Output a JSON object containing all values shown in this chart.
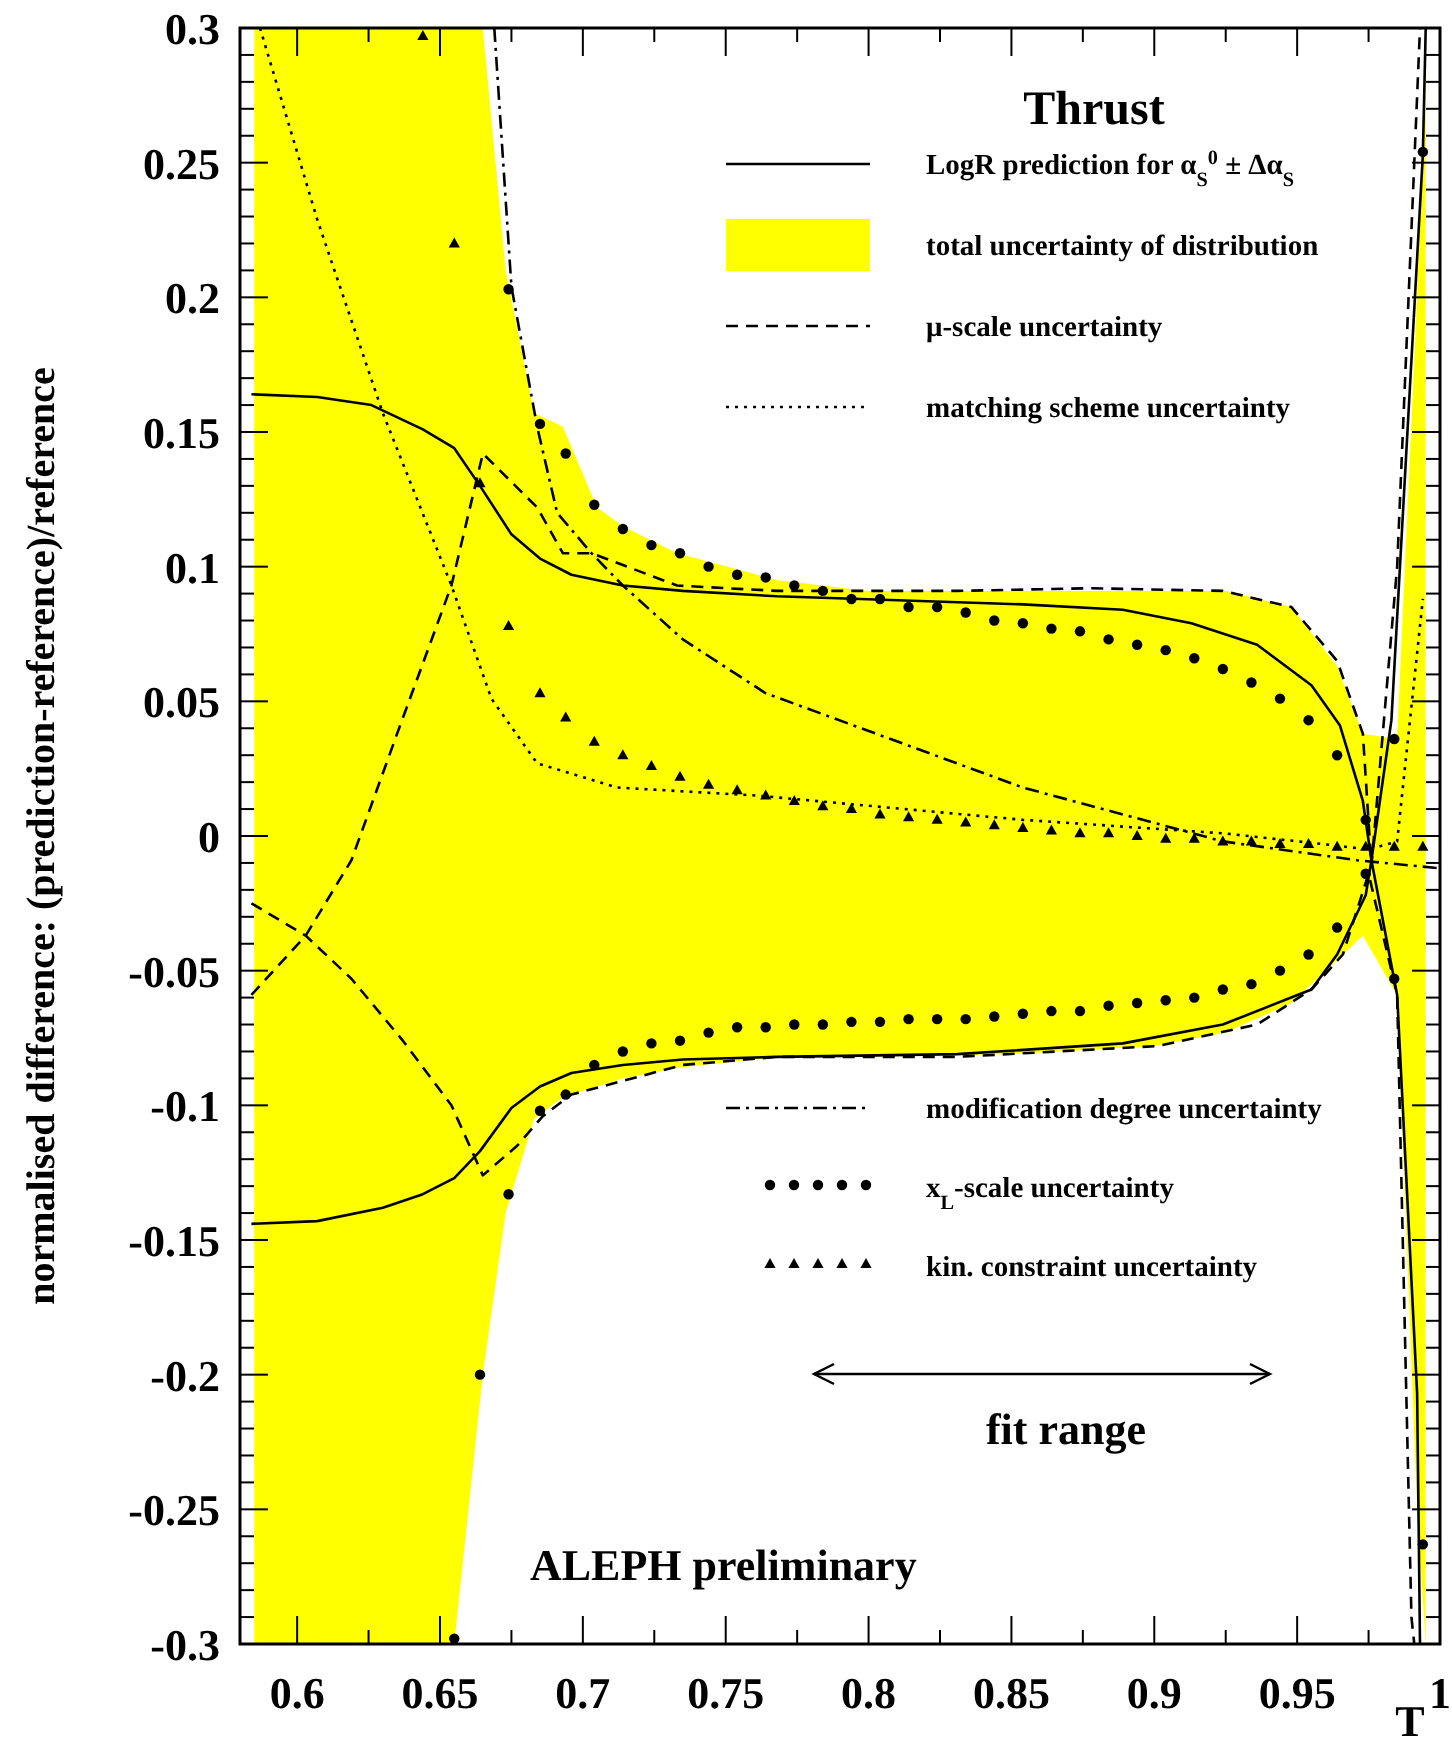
{
  "chart_data": {
    "type": "line",
    "title": "Thrust",
    "xlabel": "T",
    "ylabel": "normalised difference: (prediction-reference)/reference",
    "xlim": [
      0.58,
      1.0
    ],
    "xticks": [
      0.6,
      {
        "value": 0.625,
        "label": null
      },
      0.65,
      {
        "value": 0.675,
        "label": null
      },
      0.7,
      {
        "value": 0.725,
        "label": null
      },
      0.75,
      {
        "value": 0.775,
        "label": null
      },
      0.8,
      {
        "value": 0.825,
        "label": null
      },
      0.85,
      {
        "value": 0.875,
        "label": null
      },
      0.9,
      {
        "value": 0.925,
        "label": null
      },
      0.95,
      {
        "value": 0.975,
        "label": null
      },
      1
    ],
    "ylim": [
      -0.3,
      0.3
    ],
    "yticks": [
      -0.3,
      {
        "value": -0.29,
        "label": null
      },
      {
        "value": -0.28,
        "label": null
      },
      {
        "value": -0.27,
        "label": null
      },
      {
        "value": -0.26,
        "label": null
      },
      -0.25,
      {
        "value": -0.24,
        "label": null
      },
      {
        "value": -0.23,
        "label": null
      },
      {
        "value": -0.22,
        "label": null
      },
      {
        "value": -0.21,
        "label": null
      },
      -0.2,
      {
        "value": -0.19,
        "label": null
      },
      {
        "value": -0.18,
        "label": null
      },
      {
        "value": -0.17,
        "label": null
      },
      {
        "value": -0.16,
        "label": null
      },
      -0.15,
      {
        "value": -0.14,
        "label": null
      },
      {
        "value": -0.13,
        "label": null
      },
      {
        "value": -0.12,
        "label": null
      },
      {
        "value": -0.11,
        "label": null
      },
      -0.1,
      {
        "value": -0.09,
        "label": null
      },
      {
        "value": -0.08,
        "label": null
      },
      {
        "value": -0.07,
        "label": null
      },
      {
        "value": -0.06,
        "label": null
      },
      -0.05,
      {
        "value": -0.04,
        "label": null
      },
      {
        "value": -0.03,
        "label": null
      },
      {
        "value": -0.02,
        "label": null
      },
      {
        "value": -0.01,
        "label": null
      },
      0,
      {
        "value": 0.01,
        "label": null
      },
      {
        "value": 0.02,
        "label": null
      },
      {
        "value": 0.03,
        "label": null
      },
      {
        "value": 0.04,
        "label": null
      },
      0.05,
      {
        "value": 0.06,
        "label": null
      },
      {
        "value": 0.07,
        "label": null
      },
      {
        "value": 0.08,
        "label": null
      },
      {
        "value": 0.09,
        "label": null
      },
      0.1,
      {
        "value": 0.11,
        "label": null
      },
      {
        "value": 0.12,
        "label": null
      },
      {
        "value": 0.13,
        "label": null
      },
      {
        "value": 0.14,
        "label": null
      },
      0.15,
      {
        "value": 0.16,
        "label": null
      },
      {
        "value": 0.17,
        "label": null
      },
      {
        "value": 0.18,
        "label": null
      },
      {
        "value": 0.19,
        "label": null
      },
      0.2,
      {
        "value": 0.21,
        "label": null
      },
      {
        "value": 0.22,
        "label": null
      },
      {
        "value": 0.23,
        "label": null
      },
      {
        "value": 0.24,
        "label": null
      },
      0.25,
      {
        "value": 0.26,
        "label": null
      },
      {
        "value": 0.27,
        "label": null
      },
      {
        "value": 0.28,
        "label": null
      },
      {
        "value": 0.29,
        "label": null
      },
      0.3
    ],
    "grid": false,
    "legend": "right",
    "annotations": [
      "fit range",
      "ALEPH preliminary"
    ],
    "series": [
      {
        "name": "LogR prediction for α$_{S}$$^{0}$ ± Δα$_{S}$",
        "color": "#000000",
        "line_style": "solid",
        "x": [
          0.584,
          0.607,
          0.626,
          0.644,
          0.655,
          0.664,
          0.675,
          0.685,
          0.696,
          0.714,
          0.735,
          0.768,
          0.854,
          0.889,
          0.913,
          0.936,
          0.955,
          0.965,
          0.973,
          0.976,
          0.983,
          0.994,
          0.995
        ],
        "values": [
          0.164,
          0.163,
          0.16,
          0.151,
          0.144,
          0.13,
          0.112,
          0.103,
          0.097,
          0.093,
          0.091,
          0.089,
          0.086,
          0.084,
          0.079,
          0.071,
          0.056,
          0.041,
          0.013,
          -0.009,
          0.043,
          0.253,
          0.3
        ]
      },
      {
        "name": "total uncertainty of distribution",
        "type": "area",
        "color": "#ffff00",
        "x": [
          0.585,
          0.62,
          0.655,
          0.665,
          0.673,
          0.683,
          0.693,
          0.705,
          0.714,
          0.733,
          0.768,
          0.8,
          0.85,
          0.9,
          0.925,
          0.948,
          0.964,
          0.973,
          0.985,
          0.992,
          0.995
        ],
        "values": [
          null,
          null,
          null,
          null,
          null,
          null,
          null,
          null,
          null,
          null,
          null,
          null,
          null,
          null,
          null,
          null,
          null,
          null,
          null,
          null,
          null
        ],
        "lower": [
          -0.3,
          -0.3,
          -0.3,
          -0.2,
          -0.14,
          -0.105,
          -0.097,
          -0.093,
          -0.09,
          -0.086,
          -0.082,
          -0.082,
          -0.081,
          -0.078,
          -0.073,
          -0.062,
          -0.046,
          -0.037,
          -0.059,
          -0.25,
          -0.3
        ],
        "upper": [
          0.3,
          0.3,
          0.3,
          0.3,
          0.21,
          0.157,
          0.152,
          0.122,
          0.115,
          0.105,
          0.095,
          0.091,
          0.091,
          0.091,
          0.091,
          0.085,
          0.063,
          0.038,
          0.036,
          0.2,
          0.3
        ]
      },
      {
        "name": "μ-scale uncertainty",
        "color": "#000000",
        "line_style": "dashed",
        "x": [
          0.584,
          0.603,
          0.619,
          0.635,
          0.654,
          0.665,
          0.684,
          0.693,
          0.703,
          0.733,
          0.768,
          0.831,
          0.878,
          0.924,
          0.948,
          0.964,
          0.973,
          0.976,
          0.985,
          0.993
        ],
        "values": [
          -0.059,
          -0.037,
          -0.009,
          0.038,
          0.093,
          0.142,
          0.122,
          0.105,
          0.105,
          0.093,
          0.091,
          0.091,
          0.092,
          0.091,
          0.085,
          0.065,
          0.038,
          -0.011,
          0.1,
          0.3
        ]
      },
      {
        "name": "matching scheme uncertainty",
        "color": "#000000",
        "line_style": "dotted",
        "x": [
          0.587,
          0.607,
          0.63,
          0.654,
          0.668,
          0.684,
          0.712,
          0.761,
          0.854,
          0.924,
          0.959,
          0.975,
          0.985,
          0.994
        ],
        "values": [
          0.3,
          0.229,
          0.157,
          0.093,
          0.051,
          0.027,
          0.018,
          0.015,
          0.006,
          0.001,
          -0.003,
          -0.005,
          -0.002,
          0.088
        ]
      },
      {
        "color": "#000000",
        "line_style": "solid",
        "x": [
          0.584,
          0.607,
          0.63,
          0.644,
          0.655,
          0.664,
          0.675,
          0.685,
          0.696,
          0.714,
          0.735,
          0.768,
          0.831,
          0.889,
          0.924,
          0.955,
          0.964,
          0.974,
          0.976,
          0.985,
          0.992,
          0.993
        ],
        "values": [
          -0.144,
          -0.143,
          -0.138,
          -0.133,
          -0.127,
          -0.117,
          -0.101,
          -0.093,
          -0.088,
          -0.085,
          -0.083,
          -0.082,
          -0.081,
          -0.077,
          -0.07,
          -0.057,
          -0.044,
          -0.022,
          -0.009,
          -0.059,
          -0.207,
          -0.3
        ]
      },
      {
        "color": "#000000",
        "line_style": "dashed",
        "x": [
          0.584,
          0.603,
          0.619,
          0.637,
          0.654,
          0.665,
          0.677,
          0.686,
          0.696,
          0.735,
          0.768,
          0.831,
          0.901,
          0.936,
          0.955,
          0.966,
          0.975,
          0.985,
          0.99,
          0.991
        ],
        "values": [
          -0.025,
          -0.037,
          -0.053,
          -0.076,
          -0.1,
          -0.126,
          -0.115,
          -0.104,
          -0.096,
          -0.085,
          -0.082,
          -0.082,
          -0.078,
          -0.07,
          -0.057,
          -0.044,
          -0.014,
          -0.059,
          -0.29,
          -0.3
        ]
      },
      {
        "name": "modification degree uncertainty",
        "color": "#000000",
        "line_style": "dashdot",
        "x": [
          0.669,
          0.675,
          0.684,
          0.691,
          0.703,
          0.714,
          0.735,
          0.764,
          0.854,
          0.924,
          0.971,
          1.0
        ],
        "values": [
          0.3,
          0.204,
          0.152,
          0.12,
          0.105,
          0.093,
          0.073,
          0.053,
          0.018,
          -0.002,
          -0.009,
          -0.012
        ]
      },
      {
        "name": "x$_{L}$-scale uncertainty",
        "type": "scatter",
        "marker": "circle",
        "color": "#000000",
        "x": [
          0.674,
          0.685,
          0.694,
          0.704,
          0.714,
          0.724,
          0.734,
          0.744,
          0.754,
          0.764,
          0.774,
          0.784,
          0.794,
          0.804,
          0.814,
          0.824,
          0.834,
          0.844,
          0.854,
          0.864,
          0.874,
          0.884,
          0.894,
          0.904,
          0.914,
          0.924,
          0.934,
          0.944,
          0.954,
          0.964,
          0.974,
          0.984,
          0.994
        ],
        "values": [
          0.203,
          0.153,
          0.142,
          0.123,
          0.114,
          0.108,
          0.105,
          0.1,
          0.097,
          0.096,
          0.093,
          0.091,
          0.088,
          0.088,
          0.085,
          0.085,
          0.083,
          0.08,
          0.079,
          0.077,
          0.076,
          0.073,
          0.071,
          0.069,
          0.066,
          0.062,
          0.057,
          0.051,
          0.043,
          0.03,
          0.006,
          0.036,
          0.254
        ]
      },
      {
        "type": "scatter",
        "marker": "circle",
        "color": "#000000",
        "x": [
          0.655,
          0.664,
          0.674,
          0.685,
          0.694,
          0.704,
          0.714,
          0.724,
          0.734,
          0.744,
          0.754,
          0.764,
          0.774,
          0.784,
          0.794,
          0.804,
          0.814,
          0.824,
          0.834,
          0.844,
          0.854,
          0.864,
          0.874,
          0.884,
          0.894,
          0.904,
          0.914,
          0.924,
          0.934,
          0.944,
          0.954,
          0.964,
          0.974,
          0.984,
          0.994
        ],
        "values": [
          -0.298,
          -0.2,
          -0.133,
          -0.102,
          -0.096,
          -0.085,
          -0.08,
          -0.077,
          -0.076,
          -0.073,
          -0.071,
          -0.071,
          -0.07,
          -0.07,
          -0.069,
          -0.069,
          -0.068,
          -0.068,
          -0.068,
          -0.067,
          -0.066,
          -0.065,
          -0.065,
          -0.063,
          -0.062,
          -0.061,
          -0.06,
          -0.057,
          -0.055,
          -0.05,
          -0.044,
          -0.034,
          -0.014,
          -0.053,
          -0.263
        ]
      },
      {
        "name": "kin. constraint uncertainty",
        "type": "scatter",
        "marker": "triangle",
        "color": "#000000",
        "x": [
          0.644,
          0.655,
          0.664,
          0.674,
          0.685,
          0.694,
          0.704,
          0.714,
          0.724,
          0.734,
          0.744,
          0.754,
          0.764,
          0.774,
          0.784,
          0.794,
          0.804,
          0.814,
          0.824,
          0.834,
          0.844,
          0.854,
          0.864,
          0.874,
          0.884,
          0.894,
          0.904,
          0.914,
          0.924,
          0.934,
          0.944,
          0.954,
          0.964,
          0.974,
          0.984,
          0.994
        ],
        "values": [
          0.297,
          0.22,
          0.131,
          0.078,
          0.053,
          0.044,
          0.035,
          0.03,
          0.026,
          0.022,
          0.019,
          0.017,
          0.015,
          0.013,
          0.011,
          0.01,
          0.008,
          0.007,
          0.006,
          0.005,
          0.004,
          0.003,
          0.002,
          0.001,
          0.001,
          0,
          -0.001,
          -0.001,
          -0.002,
          -0.002,
          -0.003,
          -0.003,
          -0.004,
          -0.004,
          -0.004,
          -0.004
        ]
      }
    ]
  }
}
